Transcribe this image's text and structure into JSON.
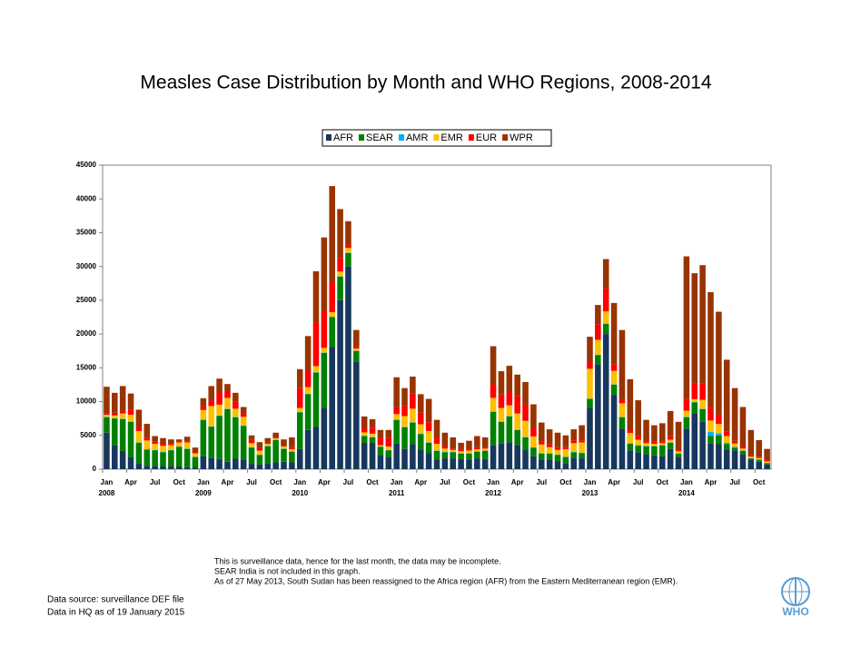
{
  "chart_data": {
    "type": "stacked_bar",
    "title": "Measles Case Distribution by Month and WHO Regions, 2008-2014",
    "categories": [
      "Jan",
      null,
      null,
      "Apr",
      null,
      null,
      "Jul",
      null,
      null,
      "Oct",
      null,
      null,
      "Jan",
      null,
      null,
      "Apr",
      null,
      null,
      "Jul",
      null,
      null,
      "Oct",
      null,
      null,
      "Jan",
      null,
      null,
      "Apr",
      null,
      null,
      "Jul",
      null,
      null,
      "Oct",
      null,
      null,
      "Jan",
      null,
      null,
      "Apr",
      null,
      null,
      "Jul",
      null,
      null,
      "Oct",
      null,
      null,
      "Jan",
      null,
      null,
      "Apr",
      null,
      null,
      "Jul",
      null,
      null,
      "Oct",
      null,
      null,
      "Jan",
      null,
      null,
      "Apr",
      null,
      null,
      "Jul",
      null,
      null,
      "Oct",
      null,
      null,
      "Jan",
      null,
      null,
      "Apr",
      null,
      null,
      "Jul",
      null,
      null,
      "Oct",
      null
    ],
    "years": [
      "2008",
      "2009",
      "2010",
      "2011",
      "2012",
      "2013",
      "2014"
    ],
    "series": [
      {
        "name": "AFR",
        "color": "#17375e",
        "values": [
          5400,
          3500,
          2700,
          1800,
          800,
          500,
          400,
          400,
          400,
          400,
          300,
          200,
          1900,
          1700,
          1500,
          1100,
          1600,
          1400,
          800,
          700,
          800,
          1000,
          1100,
          1000,
          3000,
          5800,
          6300,
          9000,
          18000,
          25000,
          30000,
          15900,
          3900,
          3900,
          2100,
          1800,
          3800,
          3000,
          3700,
          2900,
          2400,
          1400,
          1600,
          1600,
          1500,
          1400,
          1600,
          1500,
          3500,
          3800,
          4000,
          3600,
          2900,
          1900,
          1400,
          1400,
          1200,
          900,
          1700,
          1600,
          9000,
          15500,
          20000,
          11000,
          6000,
          2800,
          2500,
          2200,
          2000,
          1900,
          3000,
          1800,
          6000,
          8300,
          7000,
          3800,
          3700,
          2900,
          2800,
          2200,
          1400,
          1100,
          700
        ]
      },
      {
        "name": "SEAR",
        "color": "#008000",
        "values": [
          2300,
          4000,
          4700,
          5200,
          3100,
          2400,
          2400,
          2100,
          2400,
          2900,
          2700,
          1600,
          5400,
          4600,
          6400,
          7800,
          6100,
          5000,
          2400,
          1400,
          2600,
          3300,
          1900,
          1600,
          5400,
          5300,
          8000,
          8200,
          4500,
          3500,
          2000,
          1600,
          1000,
          800,
          1200,
          1000,
          3500,
          3200,
          3200,
          2300,
          1500,
          1300,
          900,
          900,
          800,
          900,
          1000,
          1200,
          5000,
          3200,
          3800,
          2200,
          1800,
          1300,
          900,
          900,
          900,
          900,
          800,
          800,
          1400,
          1400,
          1500,
          1500,
          1700,
          1000,
          1000,
          1200,
          1400,
          1600,
          900,
          500,
          1700,
          1600,
          1900,
          1100,
          1300,
          800,
          400,
          500,
          200,
          300,
          200
        ]
      },
      {
        "name": "AMR",
        "color": "#00b0f0",
        "values": [
          50,
          50,
          50,
          50,
          50,
          50,
          50,
          50,
          50,
          50,
          50,
          50,
          50,
          50,
          50,
          50,
          50,
          50,
          50,
          50,
          50,
          50,
          50,
          50,
          50,
          50,
          50,
          50,
          50,
          50,
          50,
          50,
          50,
          50,
          50,
          50,
          50,
          50,
          50,
          50,
          50,
          50,
          50,
          50,
          50,
          50,
          50,
          50,
          50,
          50,
          50,
          50,
          50,
          50,
          50,
          50,
          50,
          50,
          50,
          50,
          50,
          50,
          50,
          50,
          50,
          50,
          50,
          50,
          50,
          50,
          50,
          50,
          50,
          50,
          50,
          600,
          300,
          200,
          100,
          50,
          50,
          50,
          50
        ]
      },
      {
        "name": "EMR",
        "color": "#ffc000",
        "values": [
          300,
          400,
          800,
          1000,
          1700,
          1300,
          900,
          900,
          700,
          600,
          900,
          500,
          1400,
          3000,
          1600,
          1600,
          1200,
          1300,
          600,
          600,
          300,
          200,
          300,
          300,
          600,
          1000,
          900,
          700,
          700,
          700,
          700,
          300,
          500,
          500,
          200,
          500,
          800,
          1600,
          2000,
          1400,
          1700,
          1000,
          500,
          300,
          300,
          400,
          300,
          300,
          2000,
          2000,
          1600,
          2400,
          2400,
          1600,
          1300,
          900,
          700,
          1100,
          1300,
          1500,
          4400,
          2200,
          1800,
          2000,
          2000,
          1500,
          800,
          400,
          300,
          300,
          400,
          300,
          900,
          400,
          1300,
          1700,
          1400,
          1000,
          500,
          300,
          200,
          200,
          200
        ]
      },
      {
        "name": "EUR",
        "color": "#ff0000",
        "values": [
          200,
          400,
          400,
          800,
          600,
          400,
          300,
          300,
          200,
          100,
          100,
          200,
          600,
          800,
          1800,
          1000,
          1100,
          500,
          500,
          400,
          200,
          100,
          100,
          300,
          3000,
          2500,
          6500,
          5500,
          4500,
          2000,
          500,
          300,
          600,
          900,
          1000,
          1300,
          1000,
          1500,
          2300,
          1700,
          1300,
          800,
          300,
          200,
          200,
          200,
          300,
          200,
          2000,
          2000,
          2100,
          2600,
          2400,
          1200,
          500,
          400,
          400,
          300,
          400,
          300,
          1000,
          2300,
          3400,
          1000,
          600,
          500,
          600,
          300,
          300,
          300,
          500,
          300,
          1800,
          2400,
          2400,
          1900,
          1300,
          700,
          400,
          300,
          200,
          200,
          200
        ]
      },
      {
        "name": "WPR",
        "color": "#993300",
        "values": [
          3950,
          2950,
          3650,
          2350,
          2550,
          2050,
          850,
          850,
          650,
          350,
          750,
          650,
          1150,
          2150,
          2050,
          1050,
          1250,
          950,
          650,
          850,
          650,
          750,
          950,
          1450,
          2750,
          5050,
          7550,
          10850,
          14150,
          7250,
          3450,
          2450,
          1750,
          1250,
          1250,
          1150,
          4450,
          2650,
          2450,
          2750,
          3450,
          2750,
          2050,
          1650,
          1050,
          1250,
          1650,
          1450,
          5650,
          3450,
          3750,
          3150,
          3350,
          3550,
          2750,
          2250,
          2150,
          1750,
          1650,
          2250,
          3750,
          2850,
          4350,
          9050,
          10250,
          7450,
          5250,
          3150,
          2450,
          2650,
          3750,
          4050,
          21050,
          16250,
          17550,
          17100,
          15300,
          10600,
          7800,
          5850,
          3750,
          2450,
          1650
        ]
      }
    ],
    "ylim": [
      0,
      45000
    ],
    "yticks": [
      0,
      5000,
      10000,
      15000,
      20000,
      25000,
      30000,
      35000,
      40000,
      45000
    ],
    "notes": [
      "This is surveillance data, hence for the last month, the data may be incomplete.",
      "SEAR  India is not included in this graph.",
      "As of 27 May 2013, South Sudan has been reassigned to the Africa region (AFR) from the Eastern Mediterranean region (EMR)."
    ],
    "source": [
      "Data source: surveillance DEF file",
      "Data in HQ as of 19 January 2015"
    ],
    "logo_text": "WHO"
  }
}
